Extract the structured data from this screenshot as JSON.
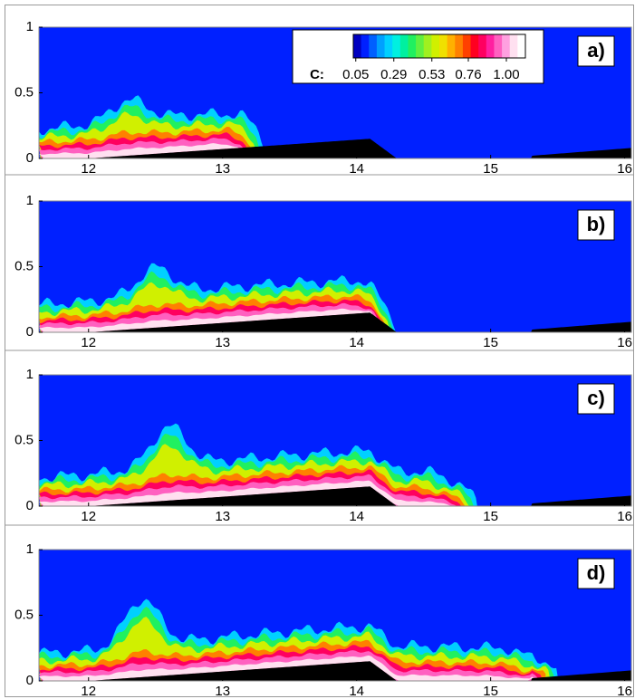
{
  "chart_data": [
    {
      "type": "contour",
      "panel_label": "a)",
      "xlim": [
        11.63,
        16.05
      ],
      "ylim": [
        0,
        1
      ],
      "xticks": [
        12,
        13,
        14,
        15,
        16
      ],
      "yticks": [
        0,
        0.5,
        1
      ],
      "colorbar": {
        "label": "C:",
        "ticks": [
          0.05,
          0.29,
          0.53,
          0.76,
          {
            "value": 1,
            "label": "1.00"
          }
        ],
        "colors": [
          "#0000c0",
          "#0020ff",
          "#0060ff",
          "#00a0ff",
          "#00d0ff",
          "#00f0e0",
          "#00f0a0",
          "#20f060",
          "#60f040",
          "#a0f020",
          "#d0f000",
          "#f0e000",
          "#ffb000",
          "#ff8000",
          "#ff4000",
          "#ff0020",
          "#ff0060",
          "#ff20a0",
          "#ff60c0",
          "#ffa0e0",
          "#ffe0f0",
          "#ffffff"
        ]
      }
    },
    {
      "type": "contour",
      "panel_label": "b)",
      "xlim": [
        11.63,
        16.05
      ],
      "ylim": [
        0,
        1
      ],
      "xticks": [
        12,
        13,
        14,
        15,
        16
      ],
      "yticks": [
        0,
        0.5,
        1
      ]
    },
    {
      "type": "contour",
      "panel_label": "c)",
      "xlim": [
        11.63,
        16.05
      ],
      "ylim": [
        0,
        1
      ],
      "xticks": [
        12,
        13,
        14,
        15,
        16
      ],
      "yticks": [
        0,
        0.5,
        1
      ]
    },
    {
      "type": "contour",
      "panel_label": "d)",
      "xlim": [
        11.63,
        16.05
      ],
      "ylim": [
        0,
        1
      ],
      "xticks": [
        12,
        13,
        14,
        15,
        16
      ],
      "yticks": [
        0,
        0.5,
        1
      ]
    }
  ]
}
